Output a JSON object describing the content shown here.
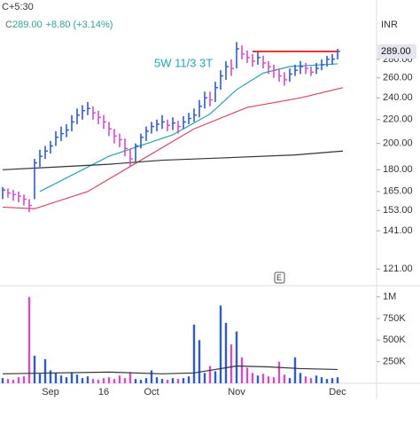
{
  "chart_data": [
    {
      "type": "hlc",
      "timezone": "C+5:30",
      "currency": "INR",
      "ohlc_prefix": "C",
      "close_label": "289.00",
      "change_label": "+8.80 (+3.14%)",
      "annotation": "5W 11/3 3T",
      "event_marker": {
        "label": "E",
        "x": 52
      },
      "log_scale": true,
      "ylim": [
        114,
        355
      ],
      "yticks": [
        {
          "value": 121,
          "label": "121.00"
        },
        {
          "value": 141,
          "label": "141.00"
        },
        {
          "value": 153,
          "label": "153.00"
        },
        {
          "value": 165,
          "label": "165.00"
        },
        {
          "value": 180,
          "label": "180.00"
        },
        {
          "value": 200,
          "label": "200.00"
        },
        {
          "value": 220,
          "label": "220.00"
        },
        {
          "value": 240,
          "label": "240.00"
        },
        {
          "value": 260,
          "label": "260.00"
        },
        {
          "value": 280,
          "label": "280.00"
        }
      ],
      "up_color": "#2b5bd6",
      "down_color": "#d64bc9",
      "high": [
        168,
        167,
        166,
        165,
        163,
        160,
        188,
        195,
        198,
        202,
        210,
        214,
        216,
        224,
        230,
        233,
        236,
        232,
        228,
        224,
        218,
        212,
        208,
        204,
        196,
        200,
        208,
        214,
        218,
        220,
        224,
        220,
        222,
        219,
        223,
        226,
        230,
        238,
        246,
        246,
        256,
        268,
        278,
        280,
        300,
        296,
        290,
        286,
        288,
        284,
        278,
        274,
        270,
        266,
        270,
        274,
        278,
        276,
        272,
        276,
        280,
        284,
        286,
        292
      ],
      "low": [
        160,
        161,
        159,
        158,
        156,
        152,
        160,
        182,
        188,
        192,
        198,
        202,
        205,
        210,
        216,
        220,
        224,
        220,
        216,
        212,
        206,
        200,
        197,
        190,
        182,
        186,
        196,
        202,
        208,
        210,
        212,
        210,
        211,
        208,
        212,
        216,
        218,
        222,
        230,
        232,
        236,
        248,
        258,
        262,
        270,
        280,
        276,
        272,
        274,
        270,
        264,
        260,
        256,
        252,
        256,
        262,
        264,
        264,
        262,
        264,
        268,
        272,
        274,
        280
      ],
      "close": [
        166,
        164,
        163,
        162,
        160,
        156,
        185,
        190,
        194,
        198,
        205,
        208,
        211,
        218,
        224,
        228,
        230,
        226,
        222,
        218,
        212,
        206,
        203,
        196,
        188,
        198,
        205,
        210,
        214,
        216,
        218,
        215,
        217,
        214,
        218,
        221,
        224,
        232,
        240,
        238,
        250,
        262,
        272,
        270,
        292,
        286,
        282,
        278,
        282,
        276,
        272,
        268,
        262,
        258,
        264,
        268,
        272,
        270,
        266,
        270,
        274,
        280,
        280.2,
        289
      ],
      "level_line": {
        "value": 289,
        "color": "#e53935",
        "x": [
          47,
          63
        ]
      },
      "ma_lines": [
        {
          "color": "#26a3b8",
          "x": [
            7,
            20,
            32,
            39,
            44,
            49,
            54,
            63
          ],
          "values": [
            165,
            190,
            207,
            225,
            248,
            265,
            272,
            275
          ]
        },
        {
          "color": "#d9485f",
          "x": [
            0,
            6,
            16,
            26,
            36,
            46,
            56,
            64
          ],
          "values": [
            155,
            154,
            165,
            187,
            212,
            231,
            240,
            250
          ]
        },
        {
          "color": "#333333",
          "x": [
            0,
            10,
            20,
            30,
            43,
            55,
            64
          ],
          "values": [
            180,
            182,
            184,
            187,
            189,
            191,
            194
          ]
        }
      ]
    },
    {
      "type": "volume",
      "ylim": [
        0,
        1130000
      ],
      "yticks": [
        {
          "value": 250000,
          "label": "250K"
        },
        {
          "value": 500000,
          "label": "500K"
        },
        {
          "value": 750000,
          "label": "750K"
        },
        {
          "value": 1000000,
          "label": "1M"
        }
      ],
      "categories": [
        null,
        null,
        null,
        null,
        null,
        null,
        null,
        null,
        null,
        "Sep",
        null,
        null,
        null,
        null,
        null,
        null,
        null,
        null,
        null,
        "16",
        null,
        null,
        null,
        null,
        null,
        null,
        null,
        null,
        "Oct",
        null,
        null,
        null,
        null,
        null,
        null,
        null,
        null,
        null,
        null,
        null,
        null,
        null,
        null,
        null,
        "Nov",
        null,
        null,
        null,
        null,
        null,
        null,
        null,
        null,
        null,
        null,
        null,
        null,
        null,
        null,
        null,
        null,
        null,
        null,
        "Dec"
      ],
      "values": [
        60000,
        50000,
        40000,
        70000,
        80000,
        1000000,
        320000,
        110000,
        280000,
        150000,
        120000,
        90000,
        70000,
        130000,
        100000,
        60000,
        80000,
        50000,
        40000,
        60000,
        70000,
        50000,
        90000,
        60000,
        130000,
        50000,
        40000,
        60000,
        150000,
        70000,
        50000,
        40000,
        60000,
        50000,
        60000,
        80000,
        680000,
        500000,
        120000,
        200000,
        140000,
        900000,
        700000,
        450000,
        600000,
        300000,
        180000,
        120000,
        90000,
        110000,
        80000,
        70000,
        250000,
        100000,
        60000,
        300000,
        120000,
        80000,
        60000,
        90000,
        70000,
        50000,
        60000,
        70000
      ],
      "avg_line": {
        "color": "#333333",
        "x": [
          0,
          10,
          20,
          30,
          36,
          40,
          44,
          50,
          56,
          63
        ],
        "values": [
          110000,
          120000,
          130000,
          110000,
          120000,
          160000,
          200000,
          190000,
          170000,
          160000
        ]
      }
    }
  ]
}
